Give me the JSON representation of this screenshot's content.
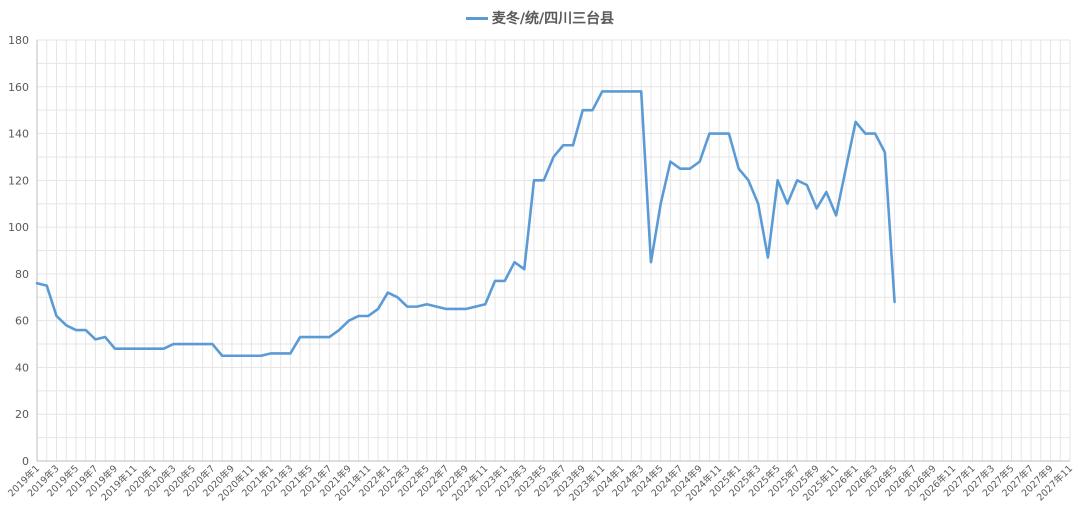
{
  "chart_data": {
    "type": "line",
    "legend_position": "top-center",
    "grid": true,
    "colors": {
      "series": "#5b9bd5",
      "grid": "#e6e6e6",
      "axis": "#bfbfbf",
      "text": "#595959"
    },
    "ylim": [
      0,
      180
    ],
    "y_ticks": [
      0,
      20,
      40,
      60,
      80,
      100,
      120,
      140,
      160,
      180
    ],
    "x_ticks": [
      "2019年1",
      "2019年3",
      "2019年5",
      "2019年7",
      "2019年9",
      "2019年11",
      "2020年1",
      "2020年3",
      "2020年5",
      "2020年7",
      "2020年9",
      "2020年11",
      "2021年1",
      "2021年3",
      "2021年5",
      "2021年7",
      "2021年9",
      "2021年11",
      "2022年1",
      "2022年3",
      "2022年5",
      "2022年7",
      "2022年9",
      "2022年11",
      "2023年1",
      "2023年3",
      "2023年5",
      "2023年7",
      "2023年9",
      "2023年11",
      "2024年1",
      "2024年3",
      "2024年5",
      "2024年7",
      "2024年9",
      "2024年11",
      "2025年1",
      "2025年3",
      "2025年5",
      "2025年7",
      "2025年9",
      "2025年11",
      "2026年1",
      "2026年3",
      "2026年5",
      "2026年7",
      "2026年9",
      "2026年11",
      "2027年1",
      "2027年3",
      "2027年5",
      "2027年7",
      "2027年9",
      "2027年11"
    ],
    "series": [
      {
        "name": "麦冬/统/四川三台县",
        "values": [
          76,
          75,
          62,
          58,
          56,
          56,
          52,
          53,
          48,
          48,
          48,
          48,
          48,
          48,
          50,
          50,
          50,
          50,
          50,
          45,
          45,
          45,
          45,
          45,
          46,
          46,
          46,
          53,
          53,
          53,
          53,
          56,
          60,
          62,
          62,
          65,
          72,
          70,
          66,
          66,
          67,
          66,
          65,
          65,
          65,
          66,
          67,
          77,
          77,
          85,
          82,
          120,
          120,
          130,
          135,
          135,
          150,
          150,
          158,
          158,
          158,
          158,
          158,
          85,
          110,
          128,
          125,
          125,
          128,
          140,
          140,
          140,
          125,
          120,
          110,
          87,
          120,
          110,
          120,
          118,
          108,
          115,
          105,
          125,
          145,
          140,
          140,
          132,
          68
        ]
      }
    ]
  }
}
